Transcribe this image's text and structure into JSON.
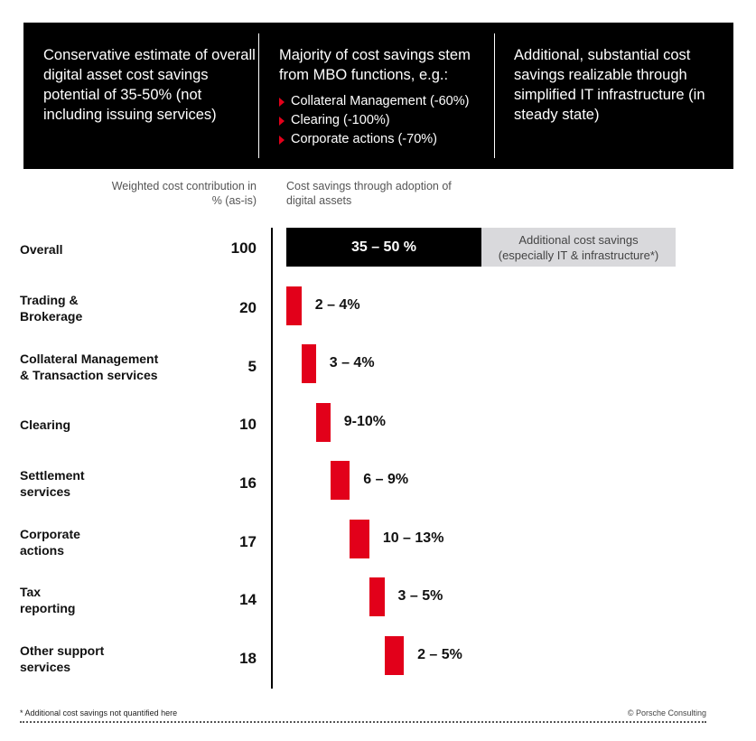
{
  "banner": {
    "col1": "Conservative estimate of overall digital asset cost savings potential of 35-50% (not including issuing services)",
    "col2_title": "Majority of cost savings stem from MBO functions, e.g.:",
    "col2_bullets": [
      "Collateral Management (-60%)",
      "Clearing (-100%)",
      "Corporate actions (-70%)"
    ],
    "col3": "Additional, substantial cost savings realizable through simplified IT infrastructure (in steady state)"
  },
  "subheaders": {
    "weighted": "Weighted cost contribution in % (as-is)",
    "savings": "Cost savings through adoption of digital assets"
  },
  "overall": {
    "label": "Overall",
    "value": "100",
    "range": "35 – 50 %",
    "additional_line1": "Additional cost savings",
    "additional_line2": "(especially IT & infrastructure*)"
  },
  "chart_data": {
    "type": "bar",
    "categories": [
      "Trading & Brokerage",
      "Collateral Management & Transaction services",
      "Clearing",
      "Settlement services",
      "Corporate actions",
      "Tax reporting",
      "Other support services"
    ],
    "weighted_cost": [
      20,
      5,
      10,
      16,
      17,
      14,
      18
    ],
    "savings_labels": [
      "2 – 4%",
      "3 – 4%",
      "9-10%",
      "6 – 9%",
      "10 – 13%",
      "3 – 5%",
      "2 – 5%"
    ],
    "savings_ranges": [
      [
        2,
        4
      ],
      [
        3,
        4
      ],
      [
        9,
        10
      ],
      [
        6,
        9
      ],
      [
        10,
        13
      ],
      [
        3,
        5
      ],
      [
        2,
        5
      ]
    ],
    "colors": {
      "segment": "#e2001a",
      "overall": "#000000",
      "additional": "#d9d9dc"
    }
  },
  "rows": [
    {
      "label_line1": "Trading &",
      "label_line2": "Brokerage",
      "value": "20",
      "savings": "2 – 4%"
    },
    {
      "label_line1": "Collateral Management",
      "label_line2": "& Transaction services",
      "value": "5",
      "savings": "3 – 4%"
    },
    {
      "label_line1": "Clearing",
      "label_line2": "",
      "value": "10",
      "savings": "9-10%"
    },
    {
      "label_line1": "Settlement",
      "label_line2": "services",
      "value": "16",
      "savings": "6 – 9%"
    },
    {
      "label_line1": "Corporate",
      "label_line2": "actions",
      "value": "17",
      "savings": "10 – 13%"
    },
    {
      "label_line1": "Tax",
      "label_line2": "reporting",
      "value": "14",
      "savings": "3 – 5%"
    },
    {
      "label_line1": "Other support",
      "label_line2": "services",
      "value": "18",
      "savings": "2 – 5%"
    }
  ],
  "footnote": "* Additional cost savings not quantified here",
  "copyright": "© Porsche Consulting"
}
